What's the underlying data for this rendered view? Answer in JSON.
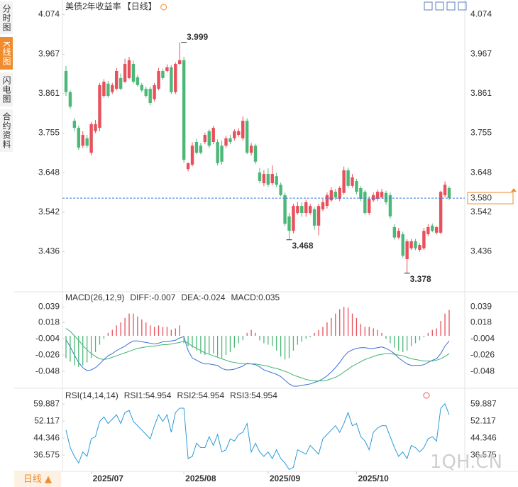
{
  "sidebar": {
    "tabs": [
      "分时图",
      "K线图",
      "闪电图",
      "合约资料"
    ]
  },
  "period_button": "日线 ▲",
  "watermark": "1QH.CN",
  "chart_data": [
    {
      "type": "candlestick",
      "title": "美债2年收益率",
      "period": "【日线】",
      "colors": {
        "up": "#e8505b",
        "down": "#4cb877"
      },
      "ylim": [
        3.33,
        4.09
      ],
      "yticks": [
        4.074,
        3.967,
        3.861,
        3.755,
        3.648,
        3.542,
        3.436
      ],
      "last": {
        "value": 3.58,
        "label": "3.580",
        "color": "#f08c2e"
      },
      "annotations": [
        {
          "index": 28,
          "value": 3.999,
          "color": "#e8505b"
        },
        {
          "index": 53,
          "value": 3.468,
          "color": "#4cb877"
        },
        {
          "index": 81,
          "value": 3.378,
          "color": "#4cb877"
        }
      ],
      "candles": [
        [
          3.922,
          3.935,
          3.855,
          3.865
        ],
        [
          3.865,
          3.87,
          3.82,
          3.826
        ],
        [
          3.788,
          3.795,
          3.76,
          3.769
        ],
        [
          3.769,
          3.775,
          3.71,
          3.716
        ],
        [
          3.721,
          3.76,
          3.715,
          3.75
        ],
        [
          3.741,
          3.75,
          3.715,
          3.721
        ],
        [
          3.702,
          3.785,
          3.695,
          3.779
        ],
        [
          3.76,
          3.79,
          3.755,
          3.779
        ],
        [
          3.769,
          3.89,
          3.76,
          3.884
        ],
        [
          3.855,
          3.9,
          3.85,
          3.893
        ],
        [
          3.888,
          3.895,
          3.85,
          3.855
        ],
        [
          3.865,
          3.89,
          3.86,
          3.884
        ],
        [
          3.874,
          3.93,
          3.87,
          3.922
        ],
        [
          3.903,
          3.915,
          3.87,
          3.874
        ],
        [
          3.893,
          3.955,
          3.89,
          3.941
        ],
        [
          3.903,
          3.96,
          3.9,
          3.951
        ],
        [
          3.941,
          3.95,
          3.888,
          3.893
        ],
        [
          3.905,
          3.912,
          3.88,
          3.884
        ],
        [
          3.884,
          3.89,
          3.865,
          3.87
        ],
        [
          3.874,
          3.88,
          3.85,
          3.855
        ],
        [
          3.874,
          3.88,
          3.83,
          3.836
        ],
        [
          3.846,
          3.89,
          3.84,
          3.884
        ],
        [
          3.874,
          3.93,
          3.87,
          3.922
        ],
        [
          3.922,
          3.928,
          3.898,
          3.903
        ],
        [
          3.922,
          3.94,
          3.918,
          3.932
        ],
        [
          3.932,
          3.938,
          3.86,
          3.865
        ],
        [
          3.865,
          3.945,
          3.86,
          3.941
        ],
        [
          3.941,
          3.999,
          3.938,
          3.951
        ],
        [
          3.951,
          3.96,
          3.675,
          3.683
        ],
        [
          3.658,
          3.676,
          3.652,
          3.674
        ],
        [
          3.67,
          3.73,
          3.665,
          3.721
        ],
        [
          3.731,
          3.74,
          3.698,
          3.702
        ],
        [
          3.721,
          3.728,
          3.698,
          3.702
        ],
        [
          3.731,
          3.756,
          3.725,
          3.75
        ],
        [
          3.76,
          3.765,
          3.715,
          3.721
        ],
        [
          3.731,
          3.775,
          3.725,
          3.769
        ],
        [
          3.731,
          3.738,
          3.668,
          3.674
        ],
        [
          3.721,
          3.735,
          3.67,
          3.678
        ],
        [
          3.721,
          3.748,
          3.715,
          3.741
        ],
        [
          3.741,
          3.75,
          3.725,
          3.731
        ],
        [
          3.741,
          3.765,
          3.735,
          3.76
        ],
        [
          3.75,
          3.768,
          3.745,
          3.76
        ],
        [
          3.741,
          3.8,
          3.735,
          3.788
        ],
        [
          3.788,
          3.795,
          3.698,
          3.702
        ],
        [
          3.702,
          3.728,
          3.695,
          3.721
        ],
        [
          3.721,
          3.726,
          3.672,
          3.678
        ],
        [
          3.649,
          3.66,
          3.62,
          3.626
        ],
        [
          3.62,
          3.655,
          3.612,
          3.645
        ],
        [
          3.645,
          3.66,
          3.61,
          3.616
        ],
        [
          3.62,
          3.668,
          3.615,
          3.645
        ],
        [
          3.639,
          3.648,
          3.61,
          3.616
        ],
        [
          3.616,
          3.622,
          3.585,
          3.588
        ],
        [
          3.588,
          3.595,
          3.505,
          3.511
        ],
        [
          3.531,
          3.54,
          3.468,
          3.492
        ],
        [
          3.492,
          3.565,
          3.485,
          3.559
        ],
        [
          3.54,
          3.57,
          3.535,
          3.559
        ],
        [
          3.559,
          3.568,
          3.53,
          3.54
        ],
        [
          3.54,
          3.575,
          3.53,
          3.569
        ],
        [
          3.54,
          3.565,
          3.535,
          3.559
        ],
        [
          3.55,
          3.556,
          3.495,
          3.506
        ],
        [
          3.506,
          3.565,
          3.48,
          3.559
        ],
        [
          3.55,
          3.578,
          3.545,
          3.569
        ],
        [
          3.559,
          3.595,
          3.552,
          3.588
        ],
        [
          3.574,
          3.61,
          3.57,
          3.601
        ],
        [
          3.597,
          3.605,
          3.575,
          3.582
        ],
        [
          3.578,
          3.612,
          3.572,
          3.607
        ],
        [
          3.594,
          3.665,
          3.59,
          3.655
        ],
        [
          3.655,
          3.662,
          3.608,
          3.613
        ],
        [
          3.613,
          3.645,
          3.608,
          3.636
        ],
        [
          3.626,
          3.632,
          3.59,
          3.597
        ],
        [
          3.607,
          3.612,
          3.572,
          3.578
        ],
        [
          3.597,
          3.602,
          3.535,
          3.54
        ],
        [
          3.54,
          3.585,
          3.535,
          3.578
        ],
        [
          3.574,
          3.595,
          3.57,
          3.588
        ],
        [
          3.578,
          3.603,
          3.572,
          3.597
        ],
        [
          3.582,
          3.605,
          3.578,
          3.597
        ],
        [
          3.594,
          3.6,
          3.562,
          3.569
        ],
        [
          3.588,
          3.595,
          3.525,
          3.531
        ],
        [
          3.502,
          3.51,
          3.468,
          3.474
        ],
        [
          3.474,
          3.5,
          3.47,
          3.492
        ],
        [
          3.483,
          3.49,
          3.42,
          3.425
        ],
        [
          3.416,
          3.47,
          3.378,
          3.464
        ],
        [
          3.445,
          3.47,
          3.44,
          3.464
        ],
        [
          3.464,
          3.47,
          3.44,
          3.445
        ],
        [
          3.441,
          3.458,
          3.436,
          3.454
        ],
        [
          3.445,
          3.5,
          3.44,
          3.492
        ],
        [
          3.483,
          3.51,
          3.478,
          3.502
        ],
        [
          3.506,
          3.512,
          3.488,
          3.492
        ],
        [
          3.487,
          3.505,
          3.482,
          3.502
        ],
        [
          3.487,
          3.6,
          3.483,
          3.597
        ],
        [
          3.588,
          3.625,
          3.582,
          3.616
        ],
        [
          3.607,
          3.612,
          3.575,
          3.58
        ]
      ]
    },
    {
      "type": "macd",
      "title": "MACD(26,12,9)",
      "ylim": [
        -0.069,
        0.046
      ],
      "yticks": [
        0.039,
        0.018,
        -0.004,
        -0.026,
        -0.048
      ],
      "colors": {
        "up": "#e8505b",
        "down": "#4cb877"
      },
      "series": [
        {
          "name": "DIFF:-0.007",
          "color": "#3a6fd8",
          "values": [
            -0.005,
            -0.015,
            -0.026,
            -0.036,
            -0.043,
            -0.047,
            -0.046,
            -0.043,
            -0.038,
            -0.032,
            -0.027,
            -0.024,
            -0.02,
            -0.017,
            -0.014,
            -0.01,
            -0.007,
            -0.007,
            -0.008,
            -0.009,
            -0.01,
            -0.011,
            -0.01,
            -0.008,
            -0.008,
            -0.007,
            -0.006,
            -0.003,
            -0.001,
            -0.02,
            -0.03,
            -0.033,
            -0.036,
            -0.038,
            -0.038,
            -0.039,
            -0.04,
            -0.044,
            -0.046,
            -0.046,
            -0.045,
            -0.043,
            -0.041,
            -0.037,
            -0.038,
            -0.039,
            -0.042,
            -0.046,
            -0.048,
            -0.05,
            -0.052,
            -0.055,
            -0.06,
            -0.065,
            -0.068,
            -0.068,
            -0.067,
            -0.066,
            -0.065,
            -0.063,
            -0.061,
            -0.058,
            -0.054,
            -0.049,
            -0.043,
            -0.036,
            -0.028,
            -0.022,
            -0.019,
            -0.017,
            -0.016,
            -0.016,
            -0.017,
            -0.017,
            -0.016,
            -0.015,
            -0.017,
            -0.02,
            -0.024,
            -0.03,
            -0.034,
            -0.038,
            -0.04,
            -0.04,
            -0.04,
            -0.039,
            -0.036,
            -0.033,
            -0.031,
            -0.024,
            -0.014,
            -0.007
          ]
        },
        {
          "name": "DEA:-0.024",
          "color": "#3cb371",
          "values": [
            0.01,
            0.006,
            0.0,
            -0.006,
            -0.013,
            -0.019,
            -0.024,
            -0.028,
            -0.031,
            -0.032,
            -0.031,
            -0.029,
            -0.027,
            -0.025,
            -0.023,
            -0.021,
            -0.019,
            -0.017,
            -0.016,
            -0.015,
            -0.014,
            -0.014,
            -0.013,
            -0.012,
            -0.012,
            -0.011,
            -0.01,
            -0.009,
            -0.007,
            -0.01,
            -0.014,
            -0.017,
            -0.02,
            -0.023,
            -0.025,
            -0.027,
            -0.029,
            -0.031,
            -0.033,
            -0.035,
            -0.036,
            -0.037,
            -0.038,
            -0.038,
            -0.038,
            -0.038,
            -0.039,
            -0.04,
            -0.041,
            -0.043,
            -0.044,
            -0.046,
            -0.048,
            -0.05,
            -0.053,
            -0.055,
            -0.057,
            -0.059,
            -0.06,
            -0.061,
            -0.061,
            -0.061,
            -0.06,
            -0.058,
            -0.056,
            -0.053,
            -0.049,
            -0.045,
            -0.041,
            -0.038,
            -0.035,
            -0.032,
            -0.03,
            -0.028,
            -0.026,
            -0.025,
            -0.024,
            -0.024,
            -0.025,
            -0.026,
            -0.027,
            -0.029,
            -0.031,
            -0.032,
            -0.033,
            -0.034,
            -0.034,
            -0.034,
            -0.033,
            -0.031,
            -0.028,
            -0.024
          ]
        },
        {
          "name": "MACD:0.035",
          "color": "#2aa5c8",
          "histogram": true,
          "values": [
            -0.03,
            -0.035,
            -0.04,
            -0.042,
            -0.04,
            -0.036,
            -0.03,
            -0.022,
            -0.012,
            -0.004,
            0.004,
            0.008,
            0.014,
            0.018,
            0.024,
            0.03,
            0.03,
            0.026,
            0.022,
            0.018,
            0.014,
            0.012,
            0.014,
            0.012,
            0.012,
            0.008,
            0.01,
            0.014,
            -0.01,
            -0.014,
            -0.016,
            -0.02,
            -0.024,
            -0.026,
            -0.024,
            -0.024,
            -0.028,
            -0.03,
            -0.026,
            -0.022,
            -0.016,
            -0.01,
            -0.006,
            0.004,
            0.008,
            0.004,
            -0.006,
            -0.01,
            -0.012,
            -0.014,
            -0.02,
            -0.028,
            -0.032,
            -0.03,
            -0.02,
            -0.012,
            -0.008,
            -0.004,
            -0.002,
            0.004,
            0.008,
            0.012,
            0.018,
            0.024,
            0.03,
            0.036,
            0.039,
            0.038,
            0.03,
            0.024,
            0.016,
            0.012,
            0.012,
            0.01,
            0.008,
            0.004,
            -0.004,
            -0.01,
            -0.016,
            -0.02,
            -0.022,
            -0.02,
            -0.014,
            -0.01,
            -0.006,
            -0.002,
            0.004,
            0.008,
            0.01,
            0.02,
            0.03,
            0.035
          ]
        }
      ]
    },
    {
      "type": "line",
      "title": "RSI(14,14,14)",
      "ylim": [
        29.8,
        62.2
      ],
      "yticks": [
        59.887,
        52.117,
        44.346,
        36.575
      ],
      "xticks": [
        {
          "value": 6,
          "label": "2025/07"
        },
        {
          "value": 28,
          "label": "2025/08"
        },
        {
          "value": 48,
          "label": "2025/09"
        },
        {
          "value": 69,
          "label": "2025/10"
        }
      ],
      "series": [
        {
          "name": "RSI1:54.954",
          "color": "#2a9bd6",
          "values": [
            48,
            40,
            36,
            33,
            38,
            36,
            44,
            45,
            52,
            54,
            51,
            53,
            55,
            51,
            56,
            57,
            52,
            50,
            48,
            46,
            44,
            50,
            55,
            52,
            55,
            47,
            56,
            58,
            58,
            35,
            36,
            42,
            40,
            40,
            45,
            41,
            46,
            38,
            39,
            44,
            43,
            46,
            47,
            51,
            38,
            42,
            38,
            36,
            38,
            35,
            39,
            35,
            33,
            30,
            31,
            39,
            38,
            37,
            41,
            39,
            37,
            44,
            46,
            48,
            50,
            47,
            51,
            56,
            50,
            51,
            45,
            43,
            39,
            47,
            49,
            50,
            50,
            45,
            40,
            36,
            38,
            35,
            41,
            40,
            38,
            40,
            44,
            45,
            43,
            58,
            60,
            55
          ]
        },
        {
          "name": "RSI2:54.954",
          "color": "#3a8fe0"
        },
        {
          "name": "RSI3:54.954",
          "color": "#2ab0c8"
        }
      ]
    }
  ]
}
